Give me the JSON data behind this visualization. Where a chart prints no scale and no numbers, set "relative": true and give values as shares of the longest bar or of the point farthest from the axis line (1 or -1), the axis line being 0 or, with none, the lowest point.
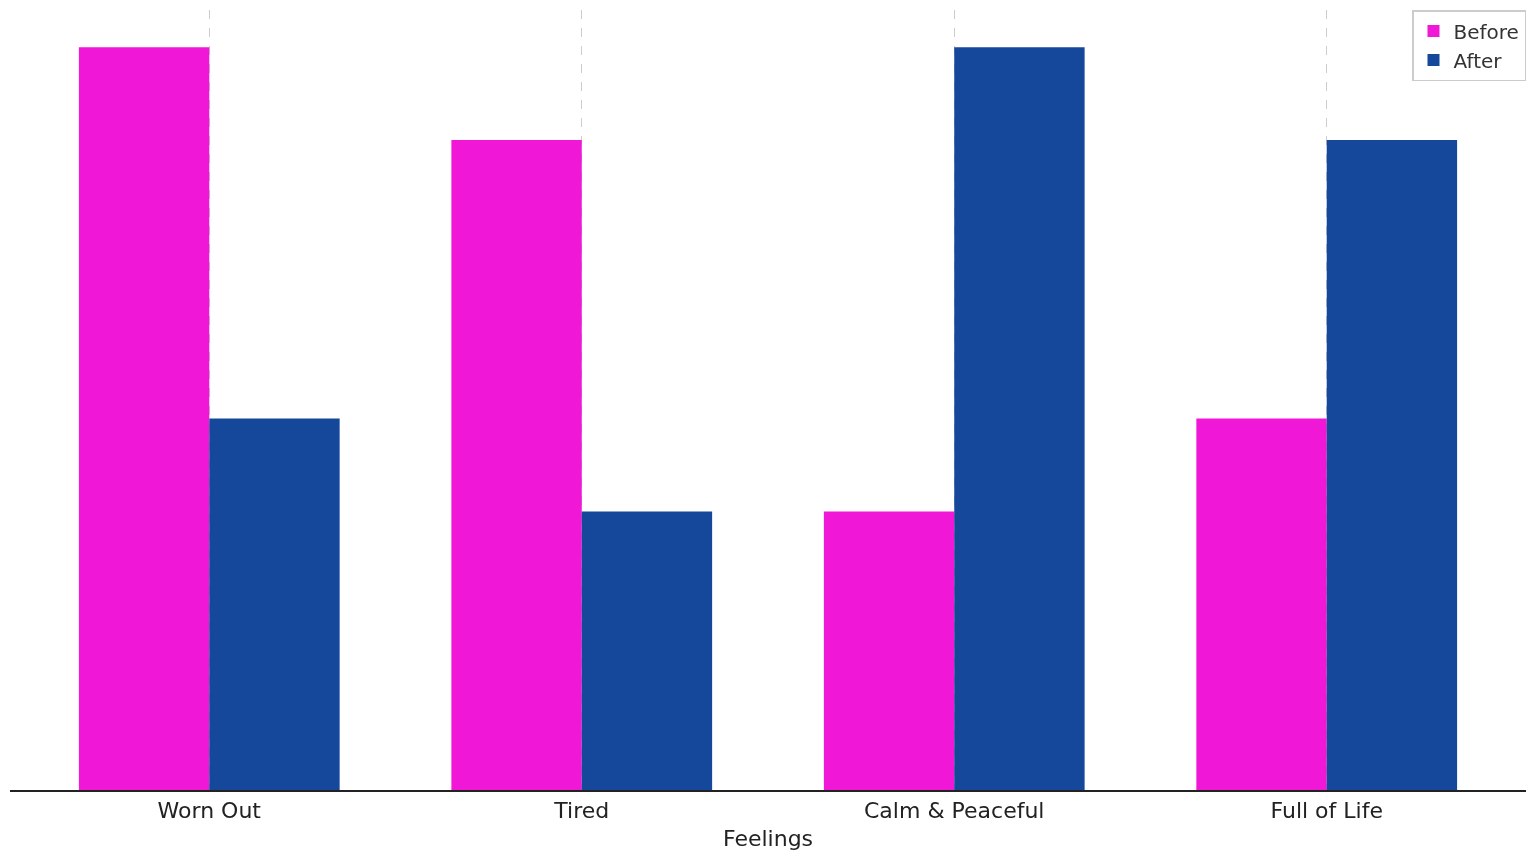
{
  "chart_data": {
    "type": "bar",
    "xlabel": "Feelings",
    "categories": [
      "Worn Out",
      "Tired",
      "Calm & Peaceful",
      "Full of Life"
    ],
    "relative": true,
    "grid": "x",
    "legend": "top right",
    "series": [
      {
        "name": "Before",
        "color": "#f017d6",
        "values": [
          1,
          0.875,
          0.375,
          0.5
        ]
      },
      {
        "name": "After",
        "color": "#15489a",
        "values": [
          0.5,
          0.375,
          1,
          0.875
        ]
      }
    ]
  }
}
